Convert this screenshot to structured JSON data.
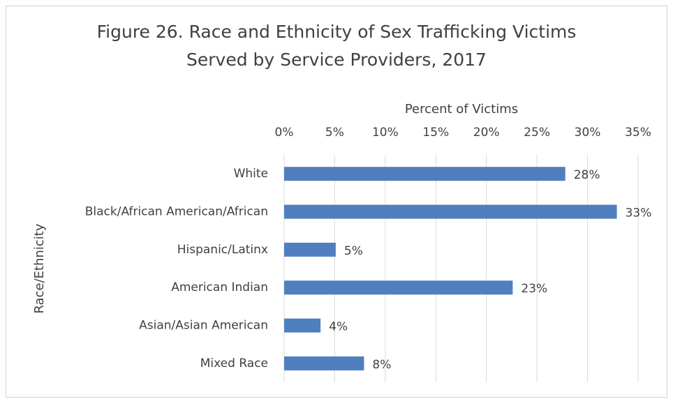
{
  "chart_data": {
    "type": "bar",
    "orientation": "horizontal",
    "title": [
      "Figure 26. Race and Ethnicity of Sex Trafficking Victims",
      "Served by Service Providers, 2017"
    ],
    "x_label": "Percent of Victims",
    "y_label": "Race/Ethnicity",
    "categories": [
      "White",
      "Black/African American/African",
      "Hispanic/Latinx",
      "American Indian",
      "Asian/Asian American",
      "Mixed Race"
    ],
    "values": [
      27.8,
      32.9,
      5.1,
      22.6,
      3.6,
      7.9
    ],
    "value_labels": [
      "28%",
      "33%",
      "5%",
      "23%",
      "4%",
      "8%"
    ],
    "color": "#4f7fbf",
    "xlim": [
      0,
      35
    ],
    "xticks": [
      {
        "value": 0,
        "label": "0%"
      },
      {
        "value": 5,
        "label": "5%"
      },
      {
        "value": 10,
        "label": "10%"
      },
      {
        "value": 15,
        "label": "15%"
      },
      {
        "value": 20,
        "label": "20%"
      },
      {
        "value": 25,
        "label": "25%"
      },
      {
        "value": 30,
        "label": "30%"
      },
      {
        "value": 35,
        "label": "35%"
      }
    ],
    "grid": true
  }
}
